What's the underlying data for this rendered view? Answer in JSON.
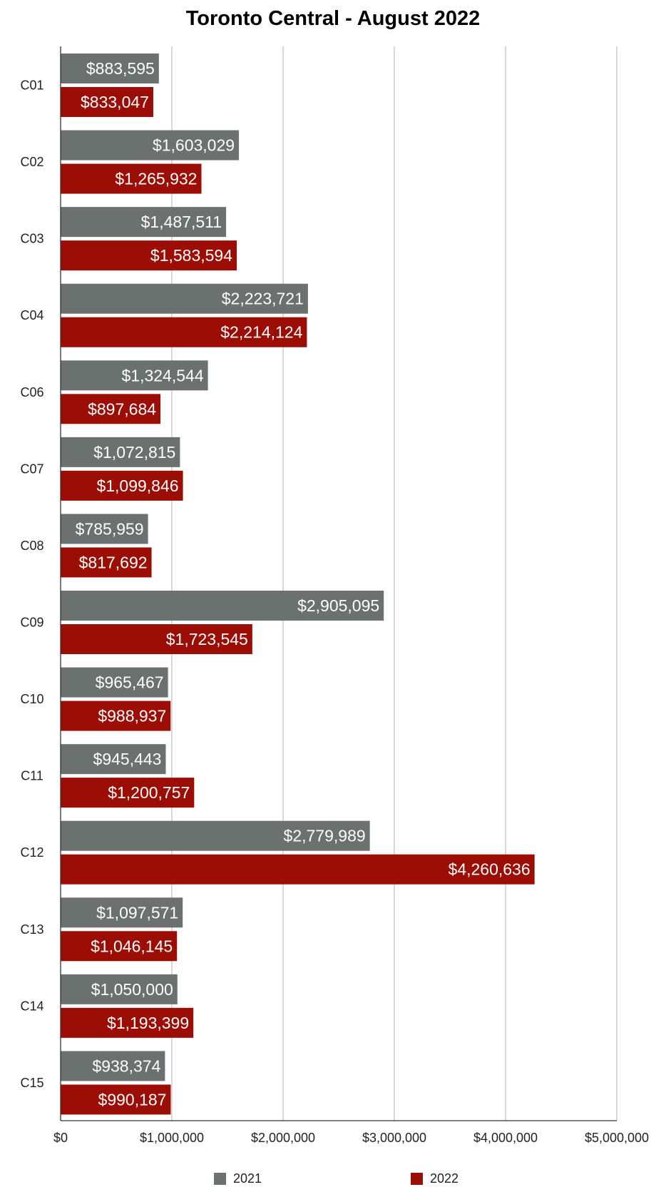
{
  "chart_data": {
    "type": "bar",
    "orientation": "horizontal",
    "title": "Toronto Central - August 2022",
    "xlabel": "",
    "ylabel": "",
    "xlim": [
      0,
      5000000
    ],
    "x_ticks": [
      0,
      1000000,
      2000000,
      3000000,
      4000000,
      5000000
    ],
    "x_tick_labels": [
      "$0",
      "$1,000,000",
      "$2,000,000",
      "$3,000,000",
      "$4,000,000",
      "$5,000,000"
    ],
    "grid": true,
    "legend_position": "bottom",
    "categories": [
      "C01",
      "C02",
      "C03",
      "C04",
      "C06",
      "C07",
      "C08",
      "C09",
      "C10",
      "C11",
      "C12",
      "C13",
      "C14",
      "C15"
    ],
    "series": [
      {
        "name": "2021",
        "color": "#6b716f",
        "values": [
          883595,
          1603029,
          1487511,
          2223721,
          1324544,
          1072815,
          785959,
          2905095,
          965467,
          945443,
          2779989,
          1097571,
          1050000,
          938374
        ],
        "labels": [
          "$883,595",
          "$1,603,029",
          "$1,487,511",
          "$2,223,721",
          "$1,324,544",
          "$1,072,815",
          "$785,959",
          "$2,905,095",
          "$965,467",
          "$945,443",
          "$2,779,989",
          "$1,097,571",
          "$1,050,000",
          "$938,374"
        ]
      },
      {
        "name": "2022",
        "color": "#9b0d05",
        "values": [
          833047,
          1265932,
          1583594,
          2214124,
          897684,
          1099846,
          817692,
          1723545,
          988937,
          1200757,
          4260636,
          1046145,
          1193399,
          990187
        ],
        "labels": [
          "$833,047",
          "$1,265,932",
          "$1,583,594",
          "$2,214,124",
          "$897,684",
          "$1,099,846",
          "$817,692",
          "$1,723,545",
          "$988,937",
          "$1,200,757",
          "$4,260,636",
          "$1,046,145",
          "$1,193,399",
          "$990,187"
        ]
      }
    ]
  }
}
